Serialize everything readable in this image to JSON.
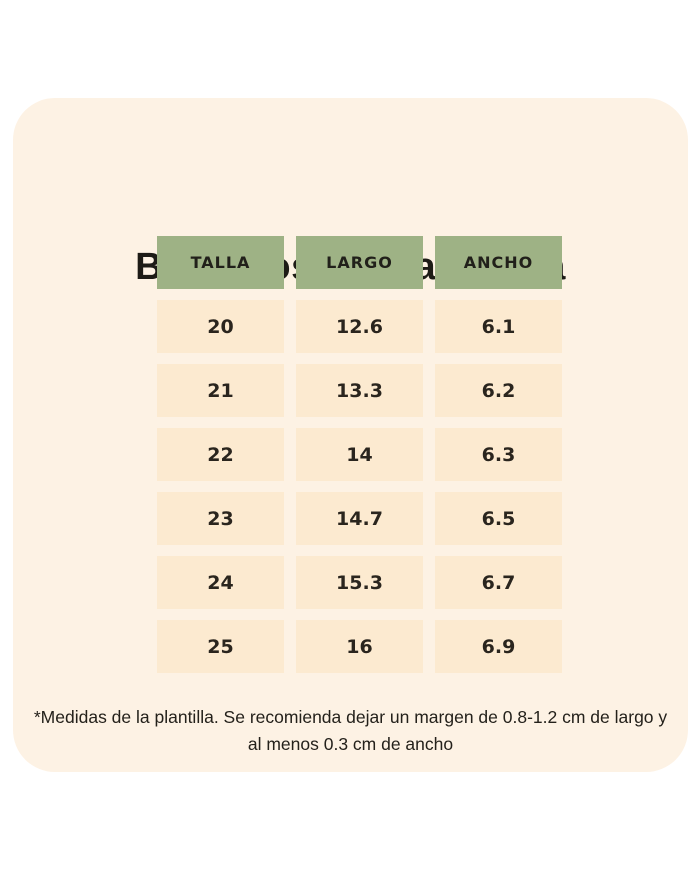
{
  "card": {
    "title": "Blanditos nueva horma",
    "footnote": "*Medidas de la plantilla. Se recomienda dejar un margen de 0.8-1.2 cm de largo y al menos 0.3 cm de ancho"
  },
  "table": {
    "headers": [
      "TALLA",
      "LARGO",
      "ANCHO"
    ],
    "rows": [
      [
        "20",
        "12.6",
        "6.1"
      ],
      [
        "21",
        "13.3",
        "6.2"
      ],
      [
        "22",
        "14",
        "6.3"
      ],
      [
        "23",
        "14.7",
        "6.5"
      ],
      [
        "24",
        "15.3",
        "6.7"
      ],
      [
        "25",
        "16",
        "6.9"
      ]
    ]
  },
  "colors": {
    "page_bg": "#ffffff",
    "card_bg": "#fdf2e4",
    "header_bg": "#9eb285",
    "cell_bg": "#fcead0",
    "text": "#24211b"
  },
  "chart_data": {
    "type": "table",
    "title": "Blanditos nueva horma",
    "columns": [
      "TALLA",
      "LARGO",
      "ANCHO"
    ],
    "rows": [
      [
        20,
        12.6,
        6.1
      ],
      [
        21,
        13.3,
        6.2
      ],
      [
        22,
        14.0,
        6.3
      ],
      [
        23,
        14.7,
        6.5
      ],
      [
        24,
        15.3,
        6.7
      ],
      [
        25,
        16.0,
        6.9
      ]
    ],
    "footnote": "*Medidas de la plantilla. Se recomienda dejar un margen de 0.8-1.2 cm de largo y al menos 0.3 cm de ancho",
    "units": "cm"
  }
}
